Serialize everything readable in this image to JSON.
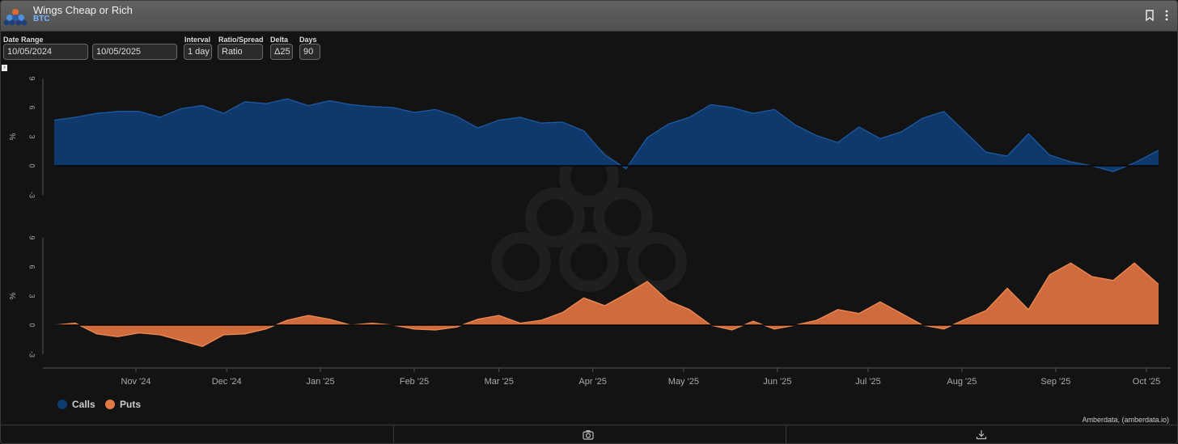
{
  "header": {
    "title": "Wings Cheap or Rich",
    "subtitle": "BTC"
  },
  "controls": {
    "date_range_label": "Date Range",
    "start_date": "10/05/2024",
    "end_date": "10/05/2025",
    "interval_label": "Interval",
    "interval_value": "1 day",
    "ratio_label": "Ratio/Spread",
    "ratio_value": "Ratio",
    "delta_label": "Delta",
    "delta_value": "Δ25",
    "days_label": "Days",
    "days_value": "90"
  },
  "icons": {
    "logo": "amberdata-logo-icon",
    "bookmark": "bookmark-icon",
    "menu": "more-vertical-icon",
    "camera": "camera-icon",
    "download": "download-icon"
  },
  "colors": {
    "calls": "#0f3a70",
    "calls_line": "#1d5aa6",
    "puts": "#d9703f",
    "puts_line": "#f08a52"
  },
  "credit": "Amberdata, (amberdata.io)",
  "chart_data": [
    {
      "type": "area",
      "ylabel": "%",
      "yticks": [
        "-3",
        "0",
        "3",
        "6",
        "9"
      ],
      "ylim": [
        -3,
        9
      ],
      "xticks": [
        "Nov '24",
        "Dec '24",
        "Jan '25",
        "Feb '25",
        "Mar '25",
        "Apr '25",
        "May '25",
        "Jun '25",
        "Jul '25",
        "Aug '25",
        "Sep '25",
        "Oct '25"
      ],
      "xrange": [
        "2024-10-05",
        "2025-10-05"
      ],
      "series": [
        {
          "name": "Calls",
          "x": [
            "2024-10-05",
            "2024-10-12",
            "2024-10-19",
            "2024-10-26",
            "2024-11-02",
            "2024-11-09",
            "2024-11-16",
            "2024-11-23",
            "2024-11-30",
            "2024-12-07",
            "2024-12-14",
            "2024-12-21",
            "2024-12-28",
            "2025-01-04",
            "2025-01-11",
            "2025-01-18",
            "2025-01-25",
            "2025-02-01",
            "2025-02-08",
            "2025-02-15",
            "2025-02-22",
            "2025-03-01",
            "2025-03-08",
            "2025-03-15",
            "2025-03-22",
            "2025-03-29",
            "2025-04-05",
            "2025-04-12",
            "2025-04-19",
            "2025-04-26",
            "2025-05-03",
            "2025-05-10",
            "2025-05-17",
            "2025-05-24",
            "2025-05-31",
            "2025-06-07",
            "2025-06-14",
            "2025-06-21",
            "2025-06-28",
            "2025-07-05",
            "2025-07-12",
            "2025-07-19",
            "2025-07-26",
            "2025-08-02",
            "2025-08-09",
            "2025-08-16",
            "2025-08-23",
            "2025-08-30",
            "2025-09-06",
            "2025-09-13",
            "2025-09-20",
            "2025-09-27",
            "2025-10-05"
          ],
          "values": [
            4.7,
            5.0,
            5.4,
            5.6,
            5.6,
            5.0,
            5.9,
            6.2,
            5.4,
            6.6,
            6.4,
            6.9,
            6.2,
            6.7,
            6.3,
            6.1,
            6.0,
            5.5,
            5.8,
            5.1,
            3.9,
            4.7,
            5.0,
            4.4,
            4.5,
            3.6,
            1.1,
            -0.3,
            2.9,
            4.3,
            5.0,
            6.3,
            6.0,
            5.4,
            5.8,
            4.2,
            3.1,
            2.4,
            4.0,
            2.8,
            3.5,
            4.9,
            5.6,
            3.5,
            1.4,
            1.0,
            3.3,
            1.1,
            0.4,
            0.0,
            -0.6,
            0.3,
            1.6
          ]
        }
      ]
    },
    {
      "type": "area",
      "ylabel": "%",
      "yticks": [
        "-3",
        "0",
        "3",
        "6",
        "9"
      ],
      "ylim": [
        -3,
        9
      ],
      "xticks": [
        "Nov '24",
        "Dec '24",
        "Jan '25",
        "Feb '25",
        "Mar '25",
        "Apr '25",
        "May '25",
        "Jun '25",
        "Jul '25",
        "Aug '25",
        "Sep '25",
        "Oct '25"
      ],
      "xrange": [
        "2024-10-05",
        "2025-10-05"
      ],
      "series": [
        {
          "name": "Puts",
          "x": [
            "2024-10-05",
            "2024-10-12",
            "2024-10-19",
            "2024-10-26",
            "2024-11-02",
            "2024-11-09",
            "2024-11-16",
            "2024-11-23",
            "2024-11-30",
            "2024-12-07",
            "2024-12-14",
            "2024-12-21",
            "2024-12-28",
            "2025-01-04",
            "2025-01-11",
            "2025-01-18",
            "2025-01-25",
            "2025-02-01",
            "2025-02-08",
            "2025-02-15",
            "2025-02-22",
            "2025-03-01",
            "2025-03-08",
            "2025-03-15",
            "2025-03-22",
            "2025-03-29",
            "2025-04-05",
            "2025-04-12",
            "2025-04-19",
            "2025-04-26",
            "2025-05-03",
            "2025-05-10",
            "2025-05-17",
            "2025-05-24",
            "2025-05-31",
            "2025-06-07",
            "2025-06-14",
            "2025-06-21",
            "2025-06-28",
            "2025-07-05",
            "2025-07-12",
            "2025-07-19",
            "2025-07-26",
            "2025-08-02",
            "2025-08-09",
            "2025-08-16",
            "2025-08-23",
            "2025-08-30",
            "2025-09-06",
            "2025-09-13",
            "2025-09-20",
            "2025-09-27",
            "2025-10-05"
          ],
          "values": [
            0.0,
            0.2,
            -0.9,
            -1.2,
            -0.8,
            -1.0,
            -1.6,
            -2.2,
            -1.0,
            -0.9,
            -0.4,
            0.5,
            1.0,
            0.6,
            0.0,
            0.2,
            0.0,
            -0.4,
            -0.5,
            -0.2,
            0.6,
            1.0,
            0.2,
            0.5,
            1.3,
            2.8,
            2.0,
            3.2,
            4.5,
            2.5,
            1.6,
            0.0,
            -0.5,
            0.4,
            -0.4,
            0.0,
            0.5,
            1.6,
            1.2,
            2.4,
            1.2,
            0.0,
            -0.4,
            0.6,
            1.5,
            3.8,
            1.6,
            5.2,
            6.4,
            5.0,
            4.6,
            6.4,
            4.2
          ]
        }
      ]
    }
  ]
}
